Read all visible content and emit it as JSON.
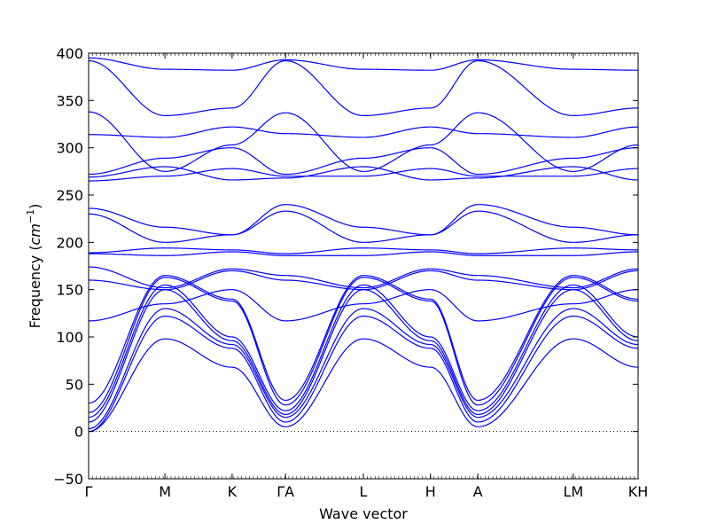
{
  "chart_data": {
    "type": "line",
    "xlabel": "Wave vector",
    "ylabel_main": "Frequency (",
    "ylabel_unit": "cm",
    "ylabel_exp": "−1",
    "ylabel_close": ")",
    "ylim": [
      -50,
      400
    ],
    "yticks": [
      {
        "value": -50,
        "label": "−50"
      },
      {
        "value": 0,
        "label": "0"
      },
      {
        "value": 50,
        "label": "50"
      },
      {
        "value": 100,
        "label": "100"
      },
      {
        "value": 150,
        "label": "150"
      },
      {
        "value": 200,
        "label": "200"
      },
      {
        "value": 250,
        "label": "250"
      },
      {
        "value": 300,
        "label": "300"
      },
      {
        "value": 350,
        "label": "350"
      },
      {
        "value": 400,
        "label": "400"
      }
    ],
    "xticks": [
      {
        "pos": 0.0,
        "label": "Γ"
      },
      {
        "pos": 1.0,
        "label": "M"
      },
      {
        "pos": 1.88,
        "label": "K"
      },
      {
        "pos": 2.58,
        "label": "ΓA"
      },
      {
        "pos": 3.6,
        "label": "L"
      },
      {
        "pos": 4.48,
        "label": "H"
      },
      {
        "pos": 5.1,
        "label": "A"
      },
      {
        "pos": 6.35,
        "label": "LM"
      },
      {
        "pos": 7.2,
        "label": "KH"
      }
    ],
    "xrange": [
      0,
      7.2
    ],
    "zero_line": 0,
    "line_color": "#0000ff",
    "segments": [
      {
        "from": 0.0,
        "to": 1.0,
        "bands": [
          [
            0,
            98
          ],
          [
            0,
            122
          ],
          [
            3,
            130
          ],
          [
            10,
            150
          ],
          [
            15,
            155
          ],
          [
            20,
            163
          ],
          [
            30,
            165
          ],
          [
            117,
            135
          ],
          [
            160,
            150
          ],
          [
            174,
            152
          ],
          [
            188,
            186
          ],
          [
            189,
            194
          ],
          [
            230,
            200
          ],
          [
            236,
            216
          ],
          [
            265,
            270
          ],
          [
            269,
            280
          ],
          [
            272,
            289
          ],
          [
            314,
            311
          ],
          [
            338,
            275
          ],
          [
            392,
            334
          ],
          [
            395,
            383
          ]
        ]
      },
      {
        "from": 1.0,
        "to": 1.88,
        "bands": [
          [
            98,
            68
          ],
          [
            122,
            88
          ],
          [
            130,
            92
          ],
          [
            150,
            96
          ],
          [
            155,
            100
          ],
          [
            163,
            138
          ],
          [
            165,
            140
          ],
          [
            135,
            150
          ],
          [
            150,
            170
          ],
          [
            152,
            172
          ],
          [
            186,
            190
          ],
          [
            194,
            192
          ],
          [
            200,
            208
          ],
          [
            216,
            208
          ],
          [
            270,
            278
          ],
          [
            280,
            266
          ],
          [
            289,
            300
          ],
          [
            311,
            322
          ],
          [
            275,
            303
          ],
          [
            334,
            342
          ],
          [
            383,
            382
          ]
        ]
      },
      {
        "from": 1.88,
        "to": 2.58,
        "bands": [
          [
            68,
            5
          ],
          [
            88,
            10
          ],
          [
            92,
            15
          ],
          [
            96,
            18
          ],
          [
            100,
            22
          ],
          [
            138,
            28
          ],
          [
            140,
            33
          ],
          [
            150,
            117
          ],
          [
            170,
            160
          ],
          [
            172,
            165
          ],
          [
            190,
            186
          ],
          [
            192,
            188
          ],
          [
            208,
            233
          ],
          [
            208,
            240
          ],
          [
            278,
            270
          ],
          [
            266,
            268
          ],
          [
            300,
            272
          ],
          [
            322,
            315
          ],
          [
            303,
            337
          ],
          [
            342,
            392
          ],
          [
            382,
            393
          ]
        ]
      },
      {
        "from": 2.58,
        "to": 3.6,
        "bands": [
          [
            5,
            98
          ],
          [
            10,
            122
          ],
          [
            15,
            130
          ],
          [
            18,
            150
          ],
          [
            22,
            155
          ],
          [
            28,
            163
          ],
          [
            33,
            165
          ],
          [
            117,
            135
          ],
          [
            160,
            150
          ],
          [
            165,
            152
          ],
          [
            186,
            186
          ],
          [
            188,
            194
          ],
          [
            233,
            200
          ],
          [
            240,
            216
          ],
          [
            270,
            270
          ],
          [
            268,
            280
          ],
          [
            272,
            289
          ],
          [
            315,
            311
          ],
          [
            337,
            275
          ],
          [
            392,
            334
          ],
          [
            393,
            383
          ]
        ]
      },
      {
        "from": 3.6,
        "to": 4.48,
        "bands": [
          [
            98,
            68
          ],
          [
            122,
            88
          ],
          [
            130,
            92
          ],
          [
            150,
            96
          ],
          [
            155,
            100
          ],
          [
            163,
            138
          ],
          [
            165,
            140
          ],
          [
            135,
            150
          ],
          [
            150,
            170
          ],
          [
            152,
            172
          ],
          [
            186,
            190
          ],
          [
            194,
            192
          ],
          [
            200,
            208
          ],
          [
            216,
            208
          ],
          [
            270,
            278
          ],
          [
            280,
            266
          ],
          [
            289,
            300
          ],
          [
            311,
            322
          ],
          [
            275,
            303
          ],
          [
            334,
            342
          ],
          [
            383,
            382
          ]
        ]
      },
      {
        "from": 4.48,
        "to": 5.1,
        "bands": [
          [
            68,
            5
          ],
          [
            88,
            10
          ],
          [
            92,
            15
          ],
          [
            96,
            18
          ],
          [
            100,
            22
          ],
          [
            138,
            28
          ],
          [
            140,
            33
          ],
          [
            150,
            117
          ],
          [
            170,
            160
          ],
          [
            172,
            165
          ],
          [
            190,
            186
          ],
          [
            192,
            188
          ],
          [
            208,
            233
          ],
          [
            208,
            240
          ],
          [
            278,
            270
          ],
          [
            266,
            268
          ],
          [
            300,
            272
          ],
          [
            322,
            315
          ],
          [
            303,
            337
          ],
          [
            342,
            392
          ],
          [
            382,
            393
          ]
        ]
      },
      {
        "from": 5.1,
        "to": 6.35,
        "bands": [
          [
            5,
            98
          ],
          [
            10,
            122
          ],
          [
            15,
            130
          ],
          [
            18,
            150
          ],
          [
            22,
            155
          ],
          [
            28,
            163
          ],
          [
            33,
            165
          ],
          [
            117,
            135
          ],
          [
            160,
            150
          ],
          [
            165,
            152
          ],
          [
            186,
            186
          ],
          [
            188,
            194
          ],
          [
            233,
            200
          ],
          [
            240,
            216
          ],
          [
            270,
            270
          ],
          [
            268,
            280
          ],
          [
            272,
            289
          ],
          [
            315,
            311
          ],
          [
            337,
            275
          ],
          [
            392,
            334
          ],
          [
            393,
            383
          ]
        ]
      },
      {
        "from": 6.35,
        "to": 7.2,
        "bands": [
          [
            98,
            68
          ],
          [
            122,
            88
          ],
          [
            130,
            92
          ],
          [
            150,
            96
          ],
          [
            155,
            100
          ],
          [
            163,
            138
          ],
          [
            165,
            140
          ],
          [
            135,
            150
          ],
          [
            150,
            170
          ],
          [
            152,
            172
          ],
          [
            186,
            190
          ],
          [
            194,
            192
          ],
          [
            200,
            208
          ],
          [
            216,
            208
          ],
          [
            270,
            278
          ],
          [
            280,
            266
          ],
          [
            289,
            300
          ],
          [
            311,
            322
          ],
          [
            275,
            303
          ],
          [
            334,
            342
          ],
          [
            383,
            382
          ]
        ]
      }
    ]
  }
}
